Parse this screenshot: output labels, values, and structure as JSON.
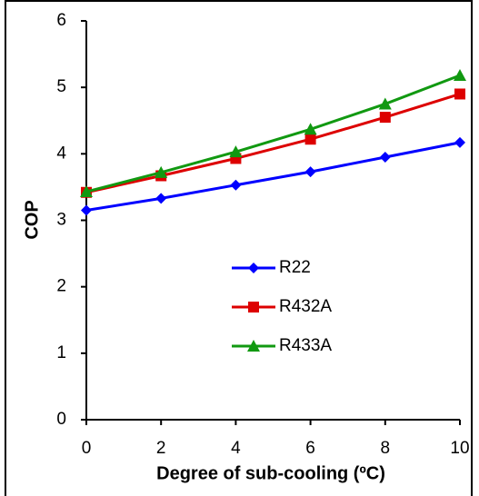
{
  "chart_data": {
    "type": "line",
    "x_label": "Degree of sub-cooling (ºC)",
    "y_label": "COP",
    "x": [
      0,
      2,
      4,
      6,
      8,
      10
    ],
    "xlim": [
      0,
      10
    ],
    "xticks": [
      0,
      2,
      4,
      6,
      8,
      10
    ],
    "ylim": [
      0,
      6
    ],
    "yticks": [
      0,
      1,
      2,
      3,
      4,
      5,
      6
    ],
    "legend": "center",
    "series": [
      {
        "name": "R22",
        "color": "#0000ff",
        "marker": "diamond",
        "values": [
          3.15,
          3.33,
          3.53,
          3.73,
          3.95,
          4.17
        ]
      },
      {
        "name": "R432A",
        "color": "#dd0000",
        "marker": "square",
        "values": [
          3.42,
          3.67,
          3.93,
          4.22,
          4.55,
          4.9
        ]
      },
      {
        "name": "R433A",
        "color": "#119911",
        "marker": "triangle",
        "values": [
          3.43,
          3.72,
          4.03,
          4.37,
          4.75,
          5.18
        ]
      }
    ]
  }
}
